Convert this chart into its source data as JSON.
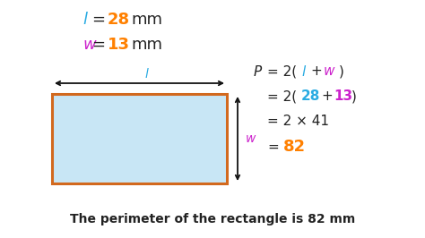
{
  "bg_color": "#ffffff",
  "rect_fill": "#c8e6f5",
  "rect_edge": "#d2691e",
  "color_blue": "#29abe2",
  "color_magenta": "#cc22cc",
  "color_orange": "#ff8000",
  "color_black": "#111111",
  "color_dark": "#222222",
  "title_bottom": "The perimeter of the rectangle is 82 mm"
}
